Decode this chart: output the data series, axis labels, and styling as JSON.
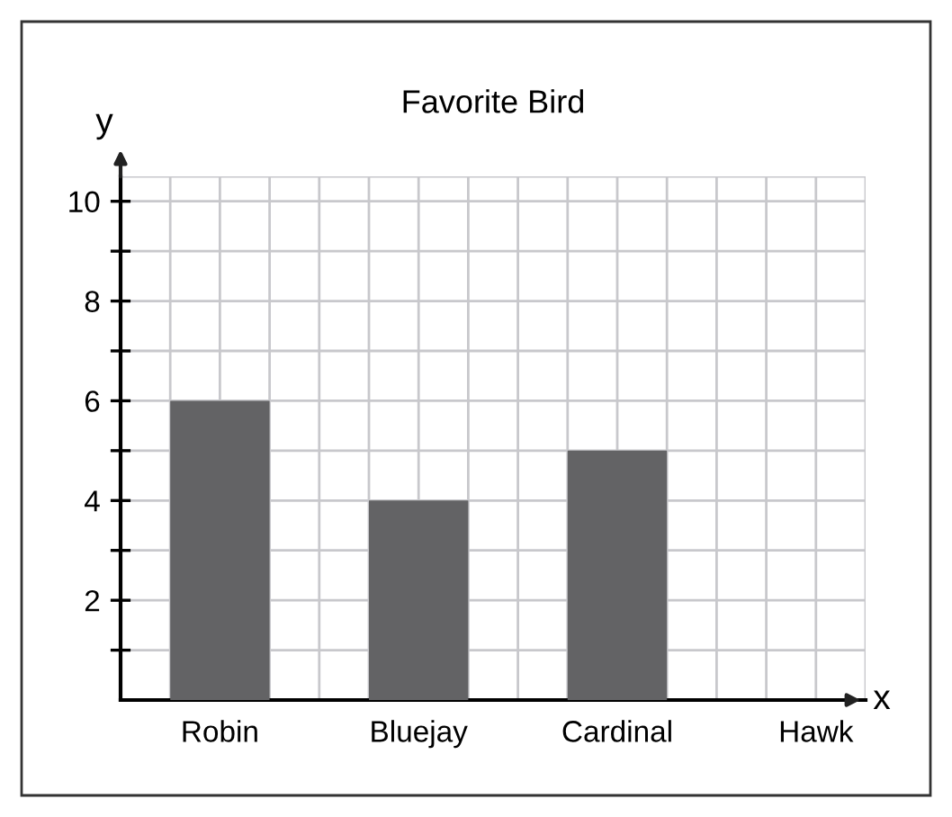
{
  "chart_data": {
    "type": "bar",
    "title": "Favorite Bird",
    "xlabel": "x",
    "ylabel": "y",
    "categories": [
      "Robin",
      "Bluejay",
      "Cardinal",
      "Hawk"
    ],
    "values": [
      6,
      4,
      5,
      0
    ],
    "color": "#636365",
    "ylim": [
      0,
      10.5
    ],
    "yticks": [
      {
        "value": 1,
        "label": null
      },
      2,
      {
        "value": 3,
        "label": null
      },
      4,
      {
        "value": 5,
        "label": null
      },
      6,
      {
        "value": 7,
        "label": null
      },
      8,
      {
        "value": 9,
        "label": null
      },
      10
    ],
    "grid": true
  }
}
